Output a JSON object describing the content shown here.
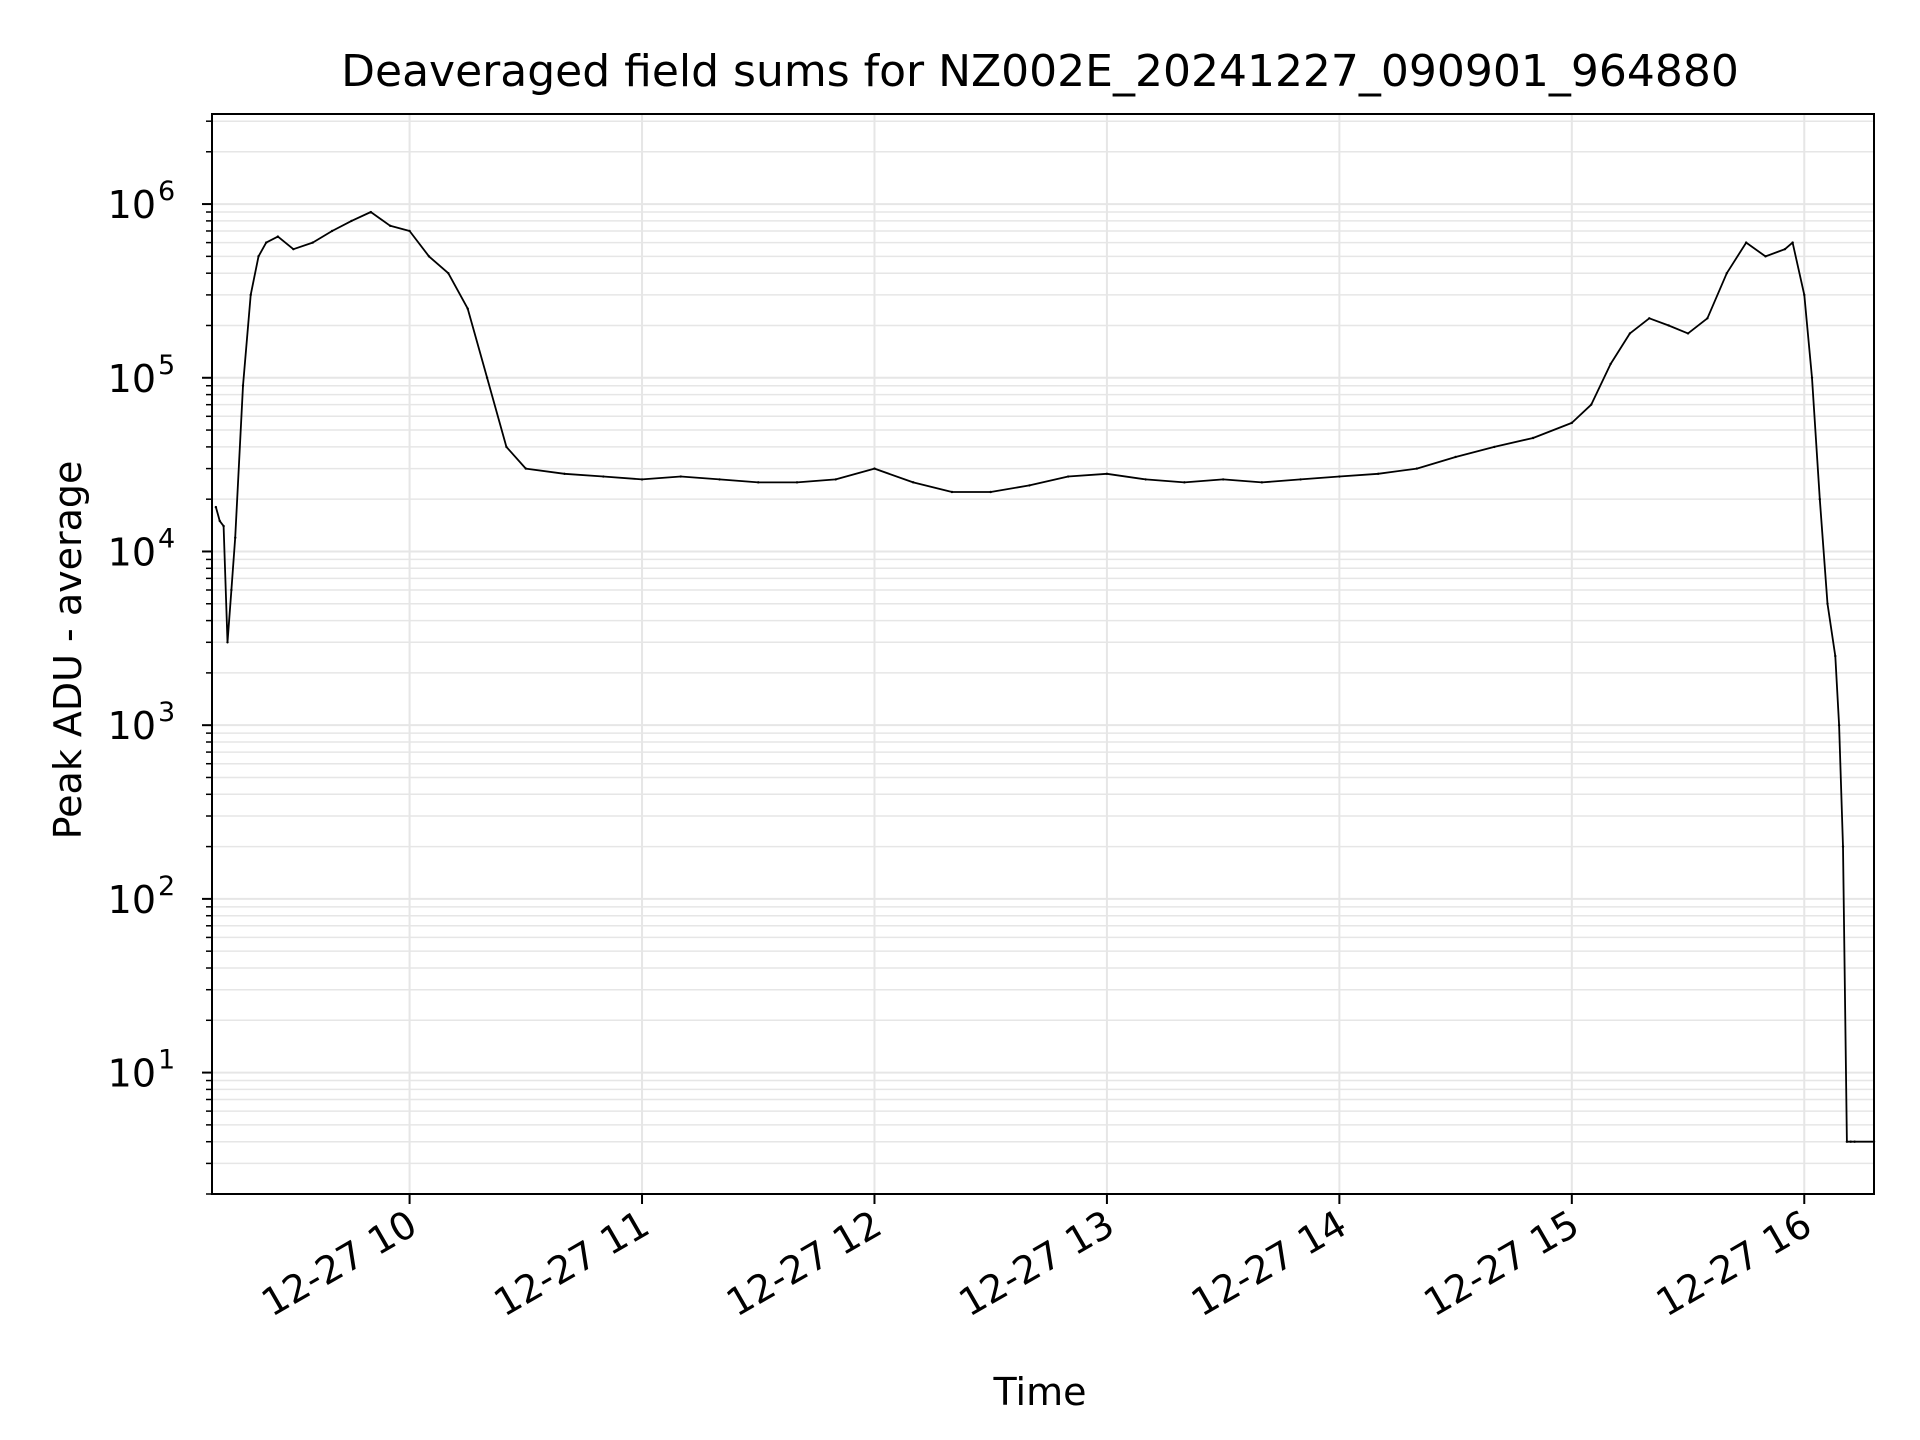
{
  "chart_data": {
    "type": "line",
    "title": "Deaveraged field sums for NZ002E_20241227_090901_964880",
    "xlabel": "Time",
    "ylabel": "Peak ADU - average",
    "y_scale": "log",
    "grid": true,
    "grid_minor": true,
    "line_color": "#000000",
    "grid_color": "#e6e6e6",
    "xlim": [
      "2024-12-27 09:09",
      "2024-12-27 16:18"
    ],
    "ylim": [
      2,
      3300000
    ],
    "x_ticks": [
      {
        "value": "2024-12-27 10:00",
        "label": "12-27 10"
      },
      {
        "value": "2024-12-27 11:00",
        "label": "12-27 11"
      },
      {
        "value": "2024-12-27 12:00",
        "label": "12-27 12"
      },
      {
        "value": "2024-12-27 13:00",
        "label": "12-27 13"
      },
      {
        "value": "2024-12-27 14:00",
        "label": "12-27 14"
      },
      {
        "value": "2024-12-27 15:00",
        "label": "12-27 15"
      },
      {
        "value": "2024-12-27 16:00",
        "label": "12-27 16"
      }
    ],
    "y_ticks": [
      {
        "value": 10,
        "base": "10",
        "exp": "1"
      },
      {
        "value": 100,
        "base": "10",
        "exp": "2"
      },
      {
        "value": 1000,
        "base": "10",
        "exp": "3"
      },
      {
        "value": 10000,
        "base": "10",
        "exp": "4"
      },
      {
        "value": 100000,
        "base": "10",
        "exp": "5"
      },
      {
        "value": 1000000,
        "base": "10",
        "exp": "6"
      }
    ],
    "series": [
      {
        "x": [
          "2024-12-27 09:10",
          "2024-12-27 09:11",
          "2024-12-27 09:12",
          "2024-12-27 09:13",
          "2024-12-27 09:14",
          "2024-12-27 09:15",
          "2024-12-27 09:17",
          "2024-12-27 09:19",
          "2024-12-27 09:21",
          "2024-12-27 09:23",
          "2024-12-27 09:26",
          "2024-12-27 09:30",
          "2024-12-27 09:35",
          "2024-12-27 09:40",
          "2024-12-27 09:45",
          "2024-12-27 09:50",
          "2024-12-27 09:55",
          "2024-12-27 10:00",
          "2024-12-27 10:05",
          "2024-12-27 10:10",
          "2024-12-27 10:15",
          "2024-12-27 10:20",
          "2024-12-27 10:25",
          "2024-12-27 10:30",
          "2024-12-27 10:40",
          "2024-12-27 10:50",
          "2024-12-27 11:00",
          "2024-12-27 11:10",
          "2024-12-27 11:20",
          "2024-12-27 11:30",
          "2024-12-27 11:40",
          "2024-12-27 11:50",
          "2024-12-27 12:00",
          "2024-12-27 12:10",
          "2024-12-27 12:20",
          "2024-12-27 12:30",
          "2024-12-27 12:40",
          "2024-12-27 12:50",
          "2024-12-27 13:00",
          "2024-12-27 13:10",
          "2024-12-27 13:20",
          "2024-12-27 13:30",
          "2024-12-27 13:40",
          "2024-12-27 13:50",
          "2024-12-27 14:00",
          "2024-12-27 14:10",
          "2024-12-27 14:20",
          "2024-12-27 14:30",
          "2024-12-27 14:40",
          "2024-12-27 14:50",
          "2024-12-27 15:00",
          "2024-12-27 15:05",
          "2024-12-27 15:10",
          "2024-12-27 15:15",
          "2024-12-27 15:20",
          "2024-12-27 15:25",
          "2024-12-27 15:30",
          "2024-12-27 15:35",
          "2024-12-27 15:40",
          "2024-12-27 15:45",
          "2024-12-27 15:50",
          "2024-12-27 15:55",
          "2024-12-27 15:57",
          "2024-12-27 16:00",
          "2024-12-27 16:02",
          "2024-12-27 16:04",
          "2024-12-27 16:06",
          "2024-12-27 16:08",
          "2024-12-27 16:09",
          "2024-12-27 16:10",
          "2024-12-27 16:11",
          "2024-12-27 16:12",
          "2024-12-27 16:13",
          "2024-12-27 16:18"
        ],
        "y": [
          18000,
          15000,
          14000,
          3000,
          6000,
          12000,
          90000,
          300000,
          500000,
          600000,
          650000,
          550000,
          600000,
          700000,
          800000,
          900000,
          750000,
          700000,
          500000,
          400000,
          250000,
          100000,
          40000,
          30000,
          28000,
          27000,
          26000,
          27000,
          26000,
          25000,
          25000,
          26000,
          30000,
          25000,
          22000,
          22000,
          24000,
          27000,
          28000,
          26000,
          25000,
          26000,
          25000,
          26000,
          27000,
          28000,
          30000,
          35000,
          40000,
          45000,
          55000,
          70000,
          120000,
          180000,
          220000,
          200000,
          180000,
          220000,
          400000,
          600000,
          500000,
          550000,
          600000,
          300000,
          100000,
          20000,
          5000,
          2500,
          1000,
          200,
          4,
          4,
          4,
          4
        ]
      }
    ]
  }
}
